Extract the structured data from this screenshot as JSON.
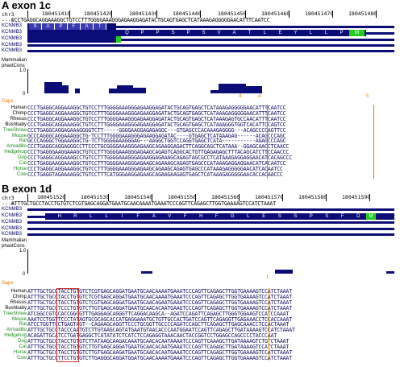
{
  "panels": [
    {
      "title": "A exon 1c",
      "chrom": "chr3",
      "ruler_labels": [
        "180451410",
        "180451420",
        "180451430",
        "180451440",
        "180451450",
        "180451460",
        "180451470",
        "180451480"
      ],
      "ref_seq": "CCCTGAGGCAGGAAAGGCTGTCCTTTGGGGAAAGGGAGAAGGAGATACTGCAGTGAGCTCATAAAGAGGGGGAACATTTCAATCC",
      "track_labels": [
        "KCNMB3",
        "KCNMB3",
        "KCNMB3",
        "KCNMB3",
        "KCNMB3"
      ],
      "aa_top": [
        "S",
        "A",
        "P",
        "F",
        "A",
        "T"
      ],
      "aa_mid": [
        "Q",
        "P",
        "P",
        "S",
        "P",
        "S",
        "V",
        "A",
        "T",
        "L",
        "E",
        "Y",
        "L",
        "L",
        "P",
        "M"
      ],
      "cons_title": "Mammalian\nphastCons",
      "axis_top": "1.0",
      "axis_bottom": "0",
      "gaps_label": "Gaps",
      "gap_marks": [
        "4",
        "4",
        "5"
      ],
      "species": [
        "Human",
        "Chimp",
        "Rhesus",
        "Bushbaby",
        "TreeShrew",
        "Mouse",
        "Rat",
        "Armadillo",
        "Hedgehog",
        "Dog",
        "Cat",
        "Horse",
        "Cow"
      ],
      "alignment": [
        "CCCTGAGGCAGGAAAGGCTGTCCTTTGGGGAAAGGGAGAAGGAGATACTGCAGTGAGCTCATAAAGAGGGGGAACATTTCAATCC",
        "CCCTGAGGCAGGAAAGGCTGTCCTTTGGGGAAAGGGAGAAGGAGATACTGCAGTGAGCTCATAAAGAGGGGGAACATTTCAATCC",
        "CCCTGAGGCAGGAAAGGCTGTCCTTTGGGGAAAGGGAGAAGGAGATACTGCAGTGAGCTCATAAAGAGTGCCAACATTTCAATCC",
        "CCCTGAGGCAGGAAAGGCTGTCCTTTGGGGAAAGGGAGAAGGAGATACTGCAGTGAGCTCATAAAGGGTGGTCACATTCCAGTCC",
        "CCCTGAGGCAGGAGAAAGGGGTCTT-----GGGGAAGGAGAGAGGC---GTGAGCCCACAAAGAGGGG---ACAGCCCCAGTTCC",
        "GCCCAGGGCAGGAAAGGCTG-TCCTTTGGGGAAAGGGAGAAGGAGATAC----GTGAGCTCATAAAGAG------ACAGCCCAGC",
        "GCCCAGGGCTGGAAAGGCTG-TCTTGGGGAAAGGGAG---AAGGCTGGTCCAGGTGAGCTCATA-----------AGAGCCCAGC",
        "CCCTGAGGCAGGAGGGCCTTCCCTGCGGGGAAAGGGAGAAGCAGAAGGAGACTTCAGGCAGCTCATAAA--GGAGCAACCTCAACC",
        "CCCTGAGGGAAGGAAAGCTGTCCTTTGGGGAAAGGGAGAAGCAGAGTCAGGCACTGTTGAGAGAGCTTTACAGCATCTTCCAACCC",
        "CCCTGAGGCAGGAAAGCCTGTCCTTTGGGGAAAGGGAGAAGGAGAAAGCAGAGTAGCGCCTCATAAAGAGGAGGAACATCACAGCCC",
        "CCCTGAGGAAGGAAAGGCTGTCCTTTGGGGAAAGGGAGAAGCAGAAAGCAGAGTGAGCCCATAAAGAGGAGGAACATCACAATCC",
        "CCCTGAGGCAGGAAAGGCTGTCCTTTGGGGAAAGGGAGAAGCAGAAGCAGAGTGAGCCCATAAAGAGGGGGAACATCACAATCC",
        "CCCTGAGGTAGAAAAGGCTGTCCTTTCATGGGAAGGAGAAGCAGAAGAAGAGTGAGCTCATAAAGAGGGGGAACACCACAACCC"
      ]
    },
    {
      "title": "B exon 1d",
      "chrom": "chr3",
      "ruler_labels": [
        "180451520",
        "180451530",
        "180451540",
        "180451550",
        "180451560",
        "180451570",
        "180451580",
        "180451590"
      ],
      "ref_seq": "ATTTGCTGCCTACCTGTGTCTCGTGAGCAGGATGAATGCAACAAAATGAAATCCCAGTTCAGAGCTTGGTGAAAAGTCCATCTAAAT",
      "track_labels": [
        "KCNMB3",
        "KCNMB3",
        "KCNMB3",
        "KCNMB3",
        "KCNMB3"
      ],
      "aa_mid": [
        "H",
        "R",
        "L",
        "L",
        "I",
        "F",
        "A",
        "V",
        "F",
        "H",
        "F",
        "G",
        "L",
        "E",
        "S",
        "S",
        "P",
        "S",
        "F",
        "D",
        "M"
      ],
      "cons_title": "Mammalian\nphastCons",
      "axis_top": "1.0",
      "axis_bottom": "0",
      "gaps_label": "Gaps",
      "gap_marks": [
        "1"
      ],
      "species": [
        "Human",
        "Chimp",
        "Rhesus",
        "Bushbaby",
        "TreeShrew",
        "Mouse",
        "Rat",
        "Armadillo",
        "Hedgehog",
        "Dog",
        "Cat",
        "Horse",
        "Cow"
      ],
      "alignment": [
        "ATTTGCTGCCTACCTGTGTCTCGTGAGCAGGATGAATGCAACAAAATGAAATCCCAGTTCAGAGCTTGGTGAAAAGTCCATCTAAAT",
        "ATTTGCTGCCTACCTGTGTCTCGTGAGCAGGATGAATGCAACAAAATGAAATCCCAGTTCAGAGCTTGGTGAAAAGTCCATCTAAAT",
        "ATTTGCTGCCTACCTGTGTCTCGTGAGCAGGATGAATGCAACAGAATGAAATCCCAGTTCAGAGCTTGGTGAAAAGTCCATCTAAAT",
        "ATTTGCTGCCTCCCTGTGTCTTGTGAGCAGGATGAATGCAACACAATGAAGTCCCAGTTCAGAGCTTGGTGAAAAGTCCATCTAAAT",
        "ATCGGCCGTCCACCGGGGTTTGAGGAGCAGGGTTCAGGACAAGCA--AGATCCAGATTCAGAGCTTGGGTGGAAGTCCATCCAAAT",
        "AAATCCTGGTTCCCTATAGTGCGCAGCACCATGAGGAAATGCTGTTGCCACTGATCCAGTTCAGAGGTTGAGAAACCTCCACCAAAT",
        "ATCCTGGTTCCTGAGTAGT--CAGAAGCAGGTTCCCTGCGGTTGCCCCAGATCCAGCTTCAGAGCTTGAGCAAACCTCCACTAAAT",
        "ATTTGCTGCCTACCCAATGTCTTGTAAGCAGTATGAATGTAACACCCAATGGAATCCAGTTCAGAGCTTGATAAAAGTCCATCTAAAT",
        "ACAGATTGCATCCTGATGAGGCTCATATATCTCATCTCCAGAGGTAAACAACTACCGGTCCTGGAGCCAGCCCCTACCCAAT",
        "ATTTGCTGCCTACCTGTGTCTTATAAGCAAGACAAATGCAACACAATAAAATCCCAGTTCAAAGCTTGATAAAAGTCTGTCTAAAT",
        "ATTTGCTGCCTACCTGTGTCTTGTGAGCAGGATGAATGCAACACAATGAAATCCCAGTTCAGAGCTTGATAAAAGTCCATCTAAAT",
        "ATTTGCTGCCTACCTGTGTCTTGTGAGCAAGATGAATGCAACACAATGAAATCCCAGTTCAGAGCTTGGTGAAAAGTCCATCTAAAT",
        "ATTTGCTGCCTTCCTGTGTCTTGAGGGCAGGATGGATGCAACAAAATGAAATCCCAGTTCAGAGCTTGGTGAAAAGTCCATCTAAAT"
      ]
    }
  ],
  "colors": {
    "track": "#0c0c78",
    "aa_box": "#3b3bb0",
    "aa_green": "#22cc22",
    "gaps": "#e08000",
    "highlight": "#d03030",
    "species_green": "#1a8a1a"
  }
}
